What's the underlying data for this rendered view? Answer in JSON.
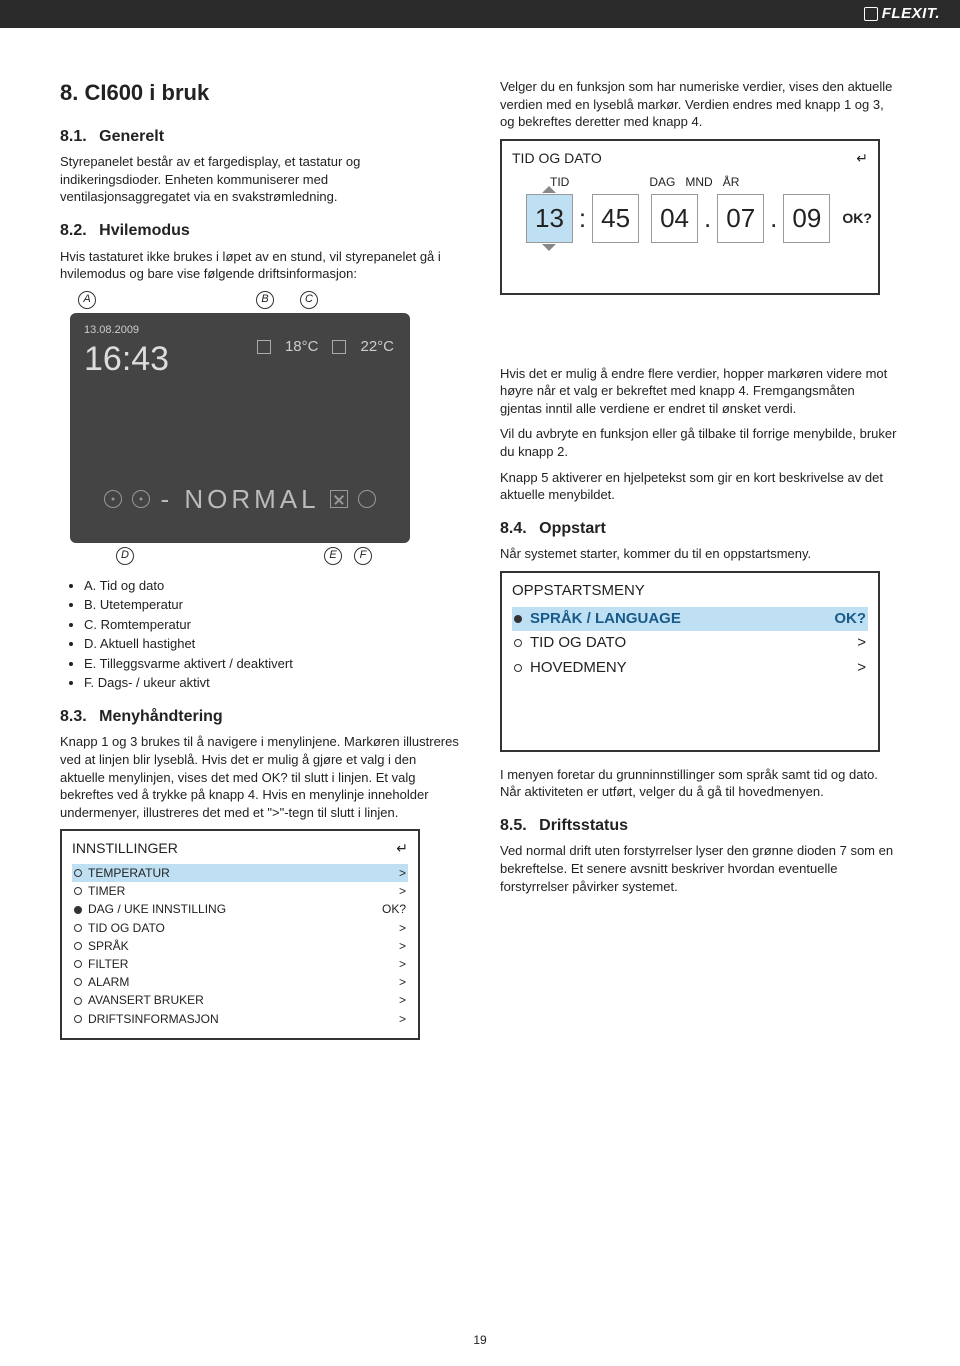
{
  "brand": "FLEXIT.",
  "page_number": "19",
  "colors": {
    "header_bg": "#2b2b2b",
    "panel_bg": "#444444",
    "highlight_bg": "#bfe0f2",
    "border": "#333333",
    "text": "#222222"
  },
  "left": {
    "h1": "8.    CI600 i bruk",
    "s1": {
      "title_num": "8.1.",
      "title": "Generelt",
      "body": "Styrepanelet består av et fargedisplay, et tastatur og indikeringsdioder. Enheten kommuniserer med ventilasjonsaggregatet via en svakstrømledning."
    },
    "s2": {
      "title_num": "8.2.",
      "title": "Hvilemodus",
      "body": "Hvis tastaturet ikke brukes i løpet av en stund, vil styrepanelet gå i hvilemodus og bare vise følgende driftsinformasjon:"
    },
    "labels_top": [
      "A",
      "B",
      "C"
    ],
    "display": {
      "date": "13.08.2009",
      "time": "16:43",
      "temp_out": "18°C",
      "temp_in": "22°C",
      "mode": "- NORMAL"
    },
    "labels_bottom": [
      "D",
      "E",
      "F"
    ],
    "legend": [
      "A. Tid og dato",
      "B. Utetemperatur",
      "C. Romtemperatur",
      "D. Aktuell hastighet",
      "E. Tilleggsvarme aktivert / deaktivert",
      "F. Dags- / ukeur aktivt"
    ],
    "s3": {
      "title_num": "8.3.",
      "title": "Menyhåndtering",
      "body": "Knapp 1 og 3 brukes til å navigere i menylinjene. Markøren illustreres ved at linjen blir lyseblå. Hvis det er mulig å gjøre et valg i den aktuelle menylinjen, vises det med OK? til slutt i linjen. Et valg bekreftes ved å trykke på knapp 4. Hvis en menylinje inneholder undermenyer, illustreres det med et \">\"-tegn til slutt i linjen."
    },
    "menu": {
      "title": "INNSTILLINGER",
      "rows": [
        {
          "label": "TEMPERATUR",
          "suffix": ">",
          "filled": false,
          "highlight": true
        },
        {
          "label": "TIMER",
          "suffix": ">",
          "filled": false,
          "highlight": false
        },
        {
          "label": "DAG / UKE INNSTILLING",
          "suffix": "OK?",
          "filled": true,
          "highlight": false
        },
        {
          "label": "TID OG DATO",
          "suffix": ">",
          "filled": false,
          "highlight": false
        },
        {
          "label": "SPRÅK",
          "suffix": ">",
          "filled": false,
          "highlight": false
        },
        {
          "label": "FILTER",
          "suffix": ">",
          "filled": false,
          "highlight": false
        },
        {
          "label": "ALARM",
          "suffix": ">",
          "filled": false,
          "highlight": false
        },
        {
          "label": "AVANSERT BRUKER",
          "suffix": ">",
          "filled": false,
          "highlight": false
        },
        {
          "label": "DRIFTSINFORMASJON",
          "suffix": ">",
          "filled": false,
          "highlight": false
        }
      ]
    }
  },
  "right": {
    "intro": "Velger du en funksjon som har numeriske verdier, vises den aktuelle verdien med en lyseblå markør. Verdien endres med knapp 1 og 3, og bekreftes deretter med knapp 4.",
    "tidbox": {
      "title": "TID OG DATO",
      "headers": [
        "TID",
        "DAG",
        "MND",
        "ÅR"
      ],
      "hh": "13",
      "mm": "45",
      "dd": "04",
      "mo": "07",
      "yy": "09",
      "ok": "OK?"
    },
    "para2": "Hvis det er mulig å endre flere verdier, hopper markøren videre mot høyre når et valg er bekreftet med knapp 4. Fremgangsmåten gjentas inntil alle verdiene er endret til ønsket verdi.",
    "para3": "Vil du avbryte en funksjon eller gå tilbake til forrige menybilde, bruker du knapp 2.",
    "para4": "Knapp 5 aktiverer en hjelpetekst som gir en kort beskrivelse av det aktuelle menybildet.",
    "s4": {
      "title_num": "8.4.",
      "title": "Oppstart",
      "body": "Når systemet starter, kommer du til en oppstartsmeny."
    },
    "oppstart": {
      "title": "OPPSTARTSMENY",
      "rows": [
        {
          "label": "SPRÅK / LANGUAGE",
          "suffix": "OK?",
          "filled": true,
          "highlight": true
        },
        {
          "label": "TID OG DATO",
          "suffix": ">",
          "filled": false,
          "highlight": false
        },
        {
          "label": "HOVEDMENY",
          "suffix": ">",
          "filled": false,
          "highlight": false
        }
      ]
    },
    "para5": "I menyen foretar du grunninnstillinger som språk samt tid og dato. Når aktiviteten er utført, velger du å gå til hovedmenyen.",
    "s5": {
      "title_num": "8.5.",
      "title": "Driftsstatus",
      "body": "Ved normal drift uten forstyrrelser lyser den grønne dioden 7 som en bekreftelse. Et senere avsnitt beskriver hvordan eventuelle forstyrrelser påvirker systemet."
    }
  }
}
